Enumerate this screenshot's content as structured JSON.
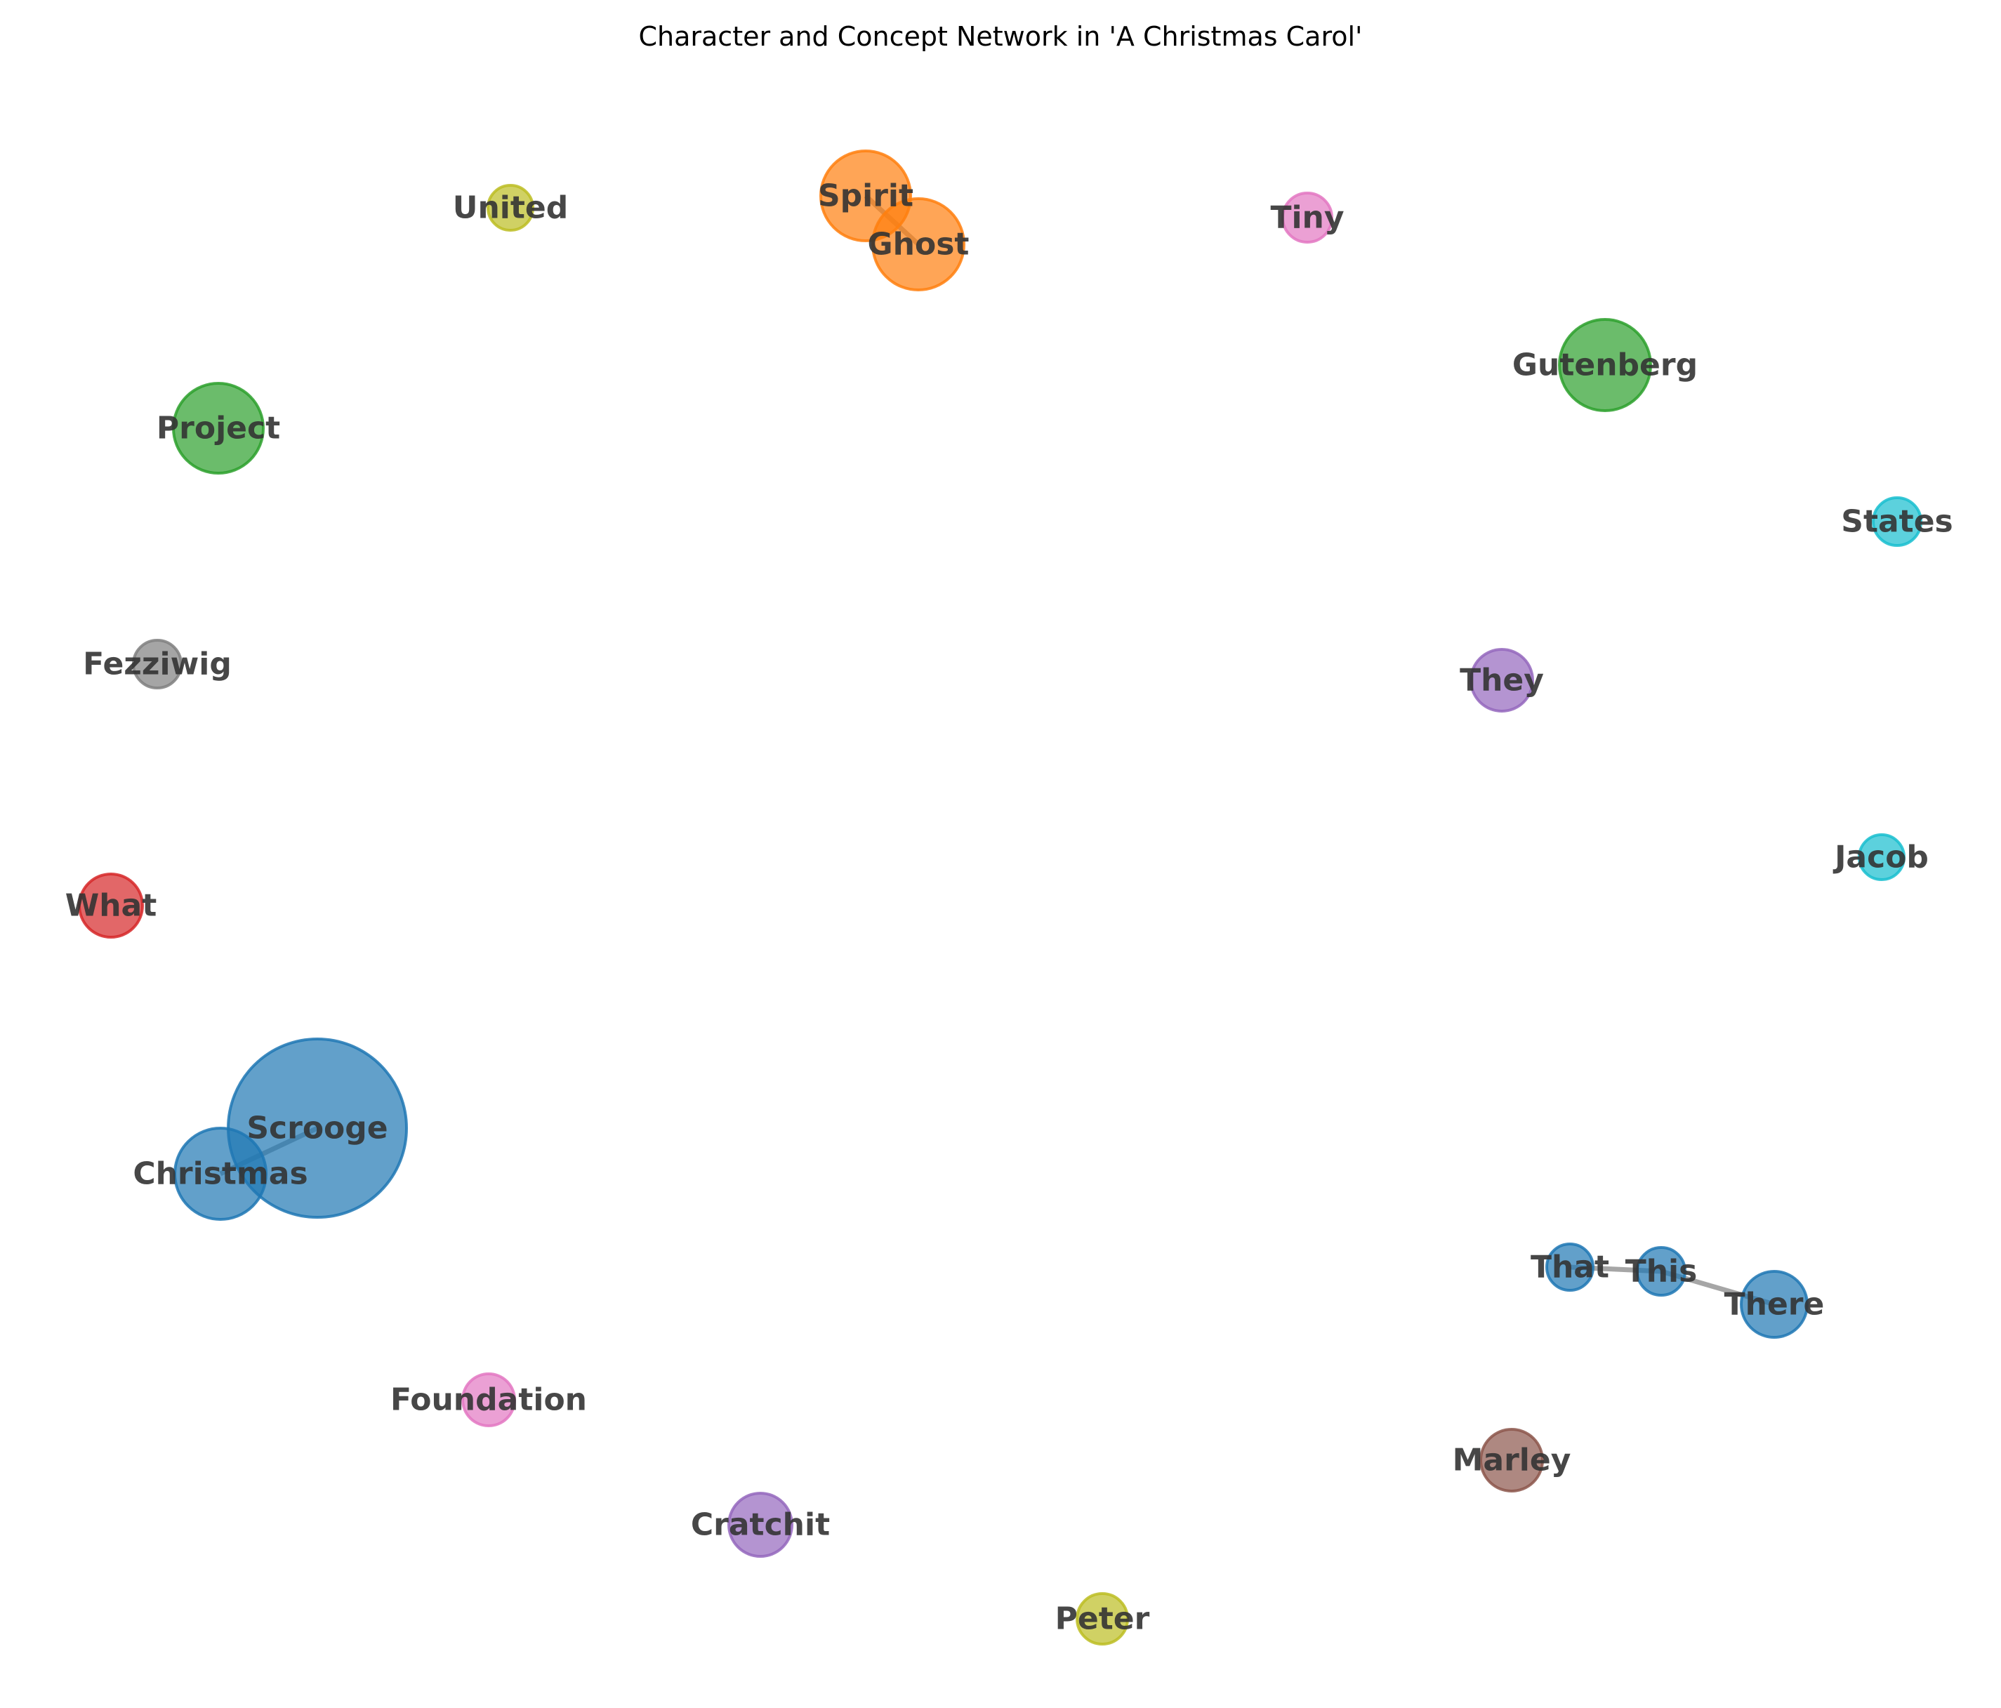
{
  "title": "Character and Concept Network in 'A Christmas Carol'",
  "node_colors": {
    "blue": "#1f77b4",
    "orange": "#ff7f0e",
    "green": "#2ca02c",
    "red": "#d62728",
    "purple": "#9467bd",
    "brown": "#8c564b",
    "pink": "#e377c2",
    "gray": "#7f7f7f",
    "olive": "#bcbd22",
    "cyan": "#17becf"
  },
  "edge_color": "#888888",
  "nodes": [
    {
      "id": "scrooge",
      "label": "Scrooge",
      "group": "blue"
    },
    {
      "id": "christmas",
      "label": "Christmas",
      "group": "blue"
    },
    {
      "id": "spirit",
      "label": "Spirit",
      "group": "orange"
    },
    {
      "id": "ghost",
      "label": "Ghost",
      "group": "orange"
    },
    {
      "id": "united",
      "label": "United",
      "group": "olive"
    },
    {
      "id": "tiny",
      "label": "Tiny",
      "group": "pink"
    },
    {
      "id": "gutenberg",
      "label": "Gutenberg",
      "group": "green"
    },
    {
      "id": "project",
      "label": "Project",
      "group": "green"
    },
    {
      "id": "states",
      "label": "States",
      "group": "cyan"
    },
    {
      "id": "fezziwig",
      "label": "Fezziwig",
      "group": "gray"
    },
    {
      "id": "they",
      "label": "They",
      "group": "purple"
    },
    {
      "id": "jacob",
      "label": "Jacob",
      "group": "cyan"
    },
    {
      "id": "what",
      "label": "What",
      "group": "red"
    },
    {
      "id": "that",
      "label": "That",
      "group": "blue"
    },
    {
      "id": "this",
      "label": "This",
      "group": "blue"
    },
    {
      "id": "there",
      "label": "There",
      "group": "blue"
    },
    {
      "id": "foundation",
      "label": "Foundation",
      "group": "pink"
    },
    {
      "id": "marley",
      "label": "Marley",
      "group": "brown"
    },
    {
      "id": "cratchit",
      "label": "Cratchit",
      "group": "purple"
    },
    {
      "id": "peter",
      "label": "Peter",
      "group": "olive"
    }
  ],
  "edges": [
    {
      "source": "scrooge",
      "target": "christmas"
    },
    {
      "source": "spirit",
      "target": "ghost"
    },
    {
      "source": "that",
      "target": "this"
    },
    {
      "source": "this",
      "target": "there"
    }
  ]
}
